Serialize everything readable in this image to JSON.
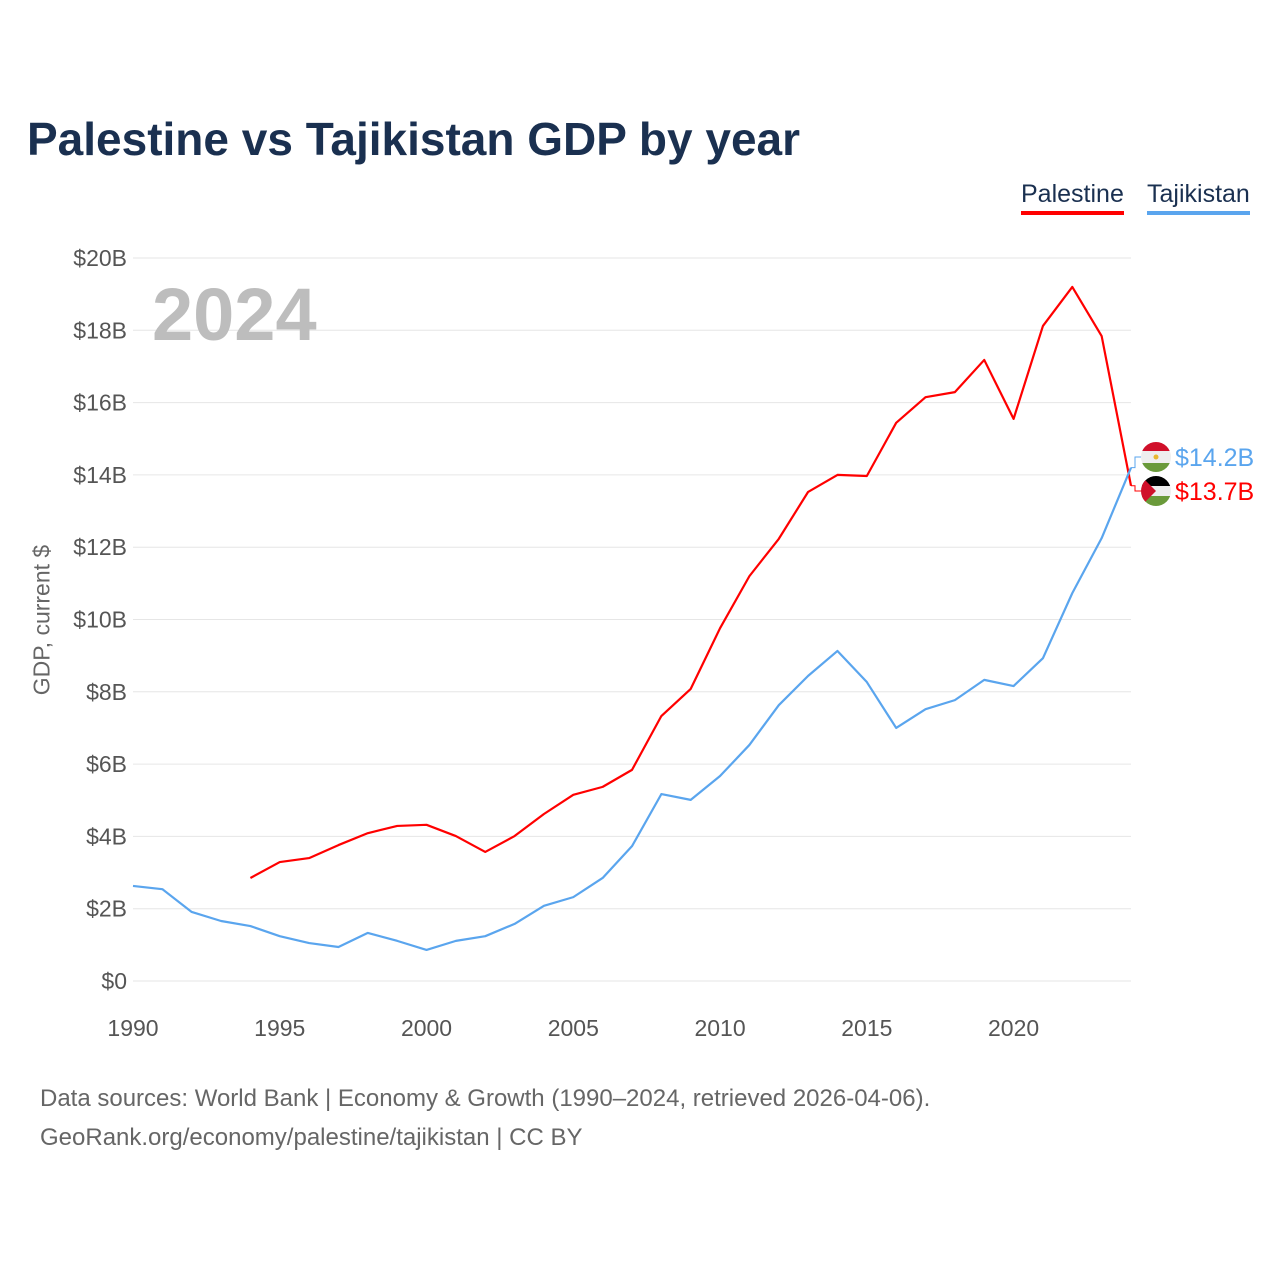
{
  "chart_data": {
    "type": "line",
    "title": "Palestine vs Tajikistan GDP by year",
    "ylabel": "GDP, current $",
    "xlabel": "",
    "ylim": [
      0,
      20
    ],
    "xlim": [
      1990,
      2024
    ],
    "yticks": [
      "$0",
      "$2B",
      "$4B",
      "$6B",
      "$8B",
      "$10B",
      "$12B",
      "$14B",
      "$16B",
      "$18B",
      "$20B"
    ],
    "xticks": [
      "1990",
      "1995",
      "2000",
      "2005",
      "2010",
      "2015",
      "2020"
    ],
    "xtick_values": [
      1990,
      1995,
      2000,
      2005,
      2010,
      2015,
      2020
    ],
    "grid": true,
    "legend_placement": "top-right",
    "highlight_year": "2024",
    "series": [
      {
        "name": "Palestine",
        "color": "#ff0000",
        "end_label": "$13.7B",
        "start": 1994,
        "values": [
          2.85,
          3.29,
          3.4,
          3.76,
          4.09,
          4.29,
          4.32,
          4.01,
          3.57,
          4.01,
          4.62,
          5.15,
          5.37,
          5.84,
          7.33,
          8.08,
          9.76,
          11.2,
          12.23,
          13.53,
          14.0,
          13.97,
          15.44,
          16.15,
          16.29,
          17.18,
          15.55,
          18.12,
          19.2,
          17.84,
          13.7
        ]
      },
      {
        "name": "Tajikistan",
        "color": "#5aa5ee",
        "end_label": "$14.2B",
        "start": 1990,
        "values": [
          2.63,
          2.54,
          1.91,
          1.66,
          1.52,
          1.24,
          1.05,
          0.94,
          1.33,
          1.11,
          0.86,
          1.11,
          1.24,
          1.58,
          2.08,
          2.32,
          2.85,
          3.73,
          5.17,
          5.01,
          5.67,
          6.53,
          7.63,
          8.44,
          9.13,
          8.27,
          7.0,
          7.52,
          7.77,
          8.33,
          8.16,
          8.93,
          10.73,
          12.25,
          14.2
        ]
      }
    ]
  },
  "footer": {
    "line1": "Data sources: World Bank | Economy & Growth (1990–2024, retrieved 2026-04-06).",
    "line2": "GeoRank.org/economy/palestine/tajikistan | CC BY"
  }
}
